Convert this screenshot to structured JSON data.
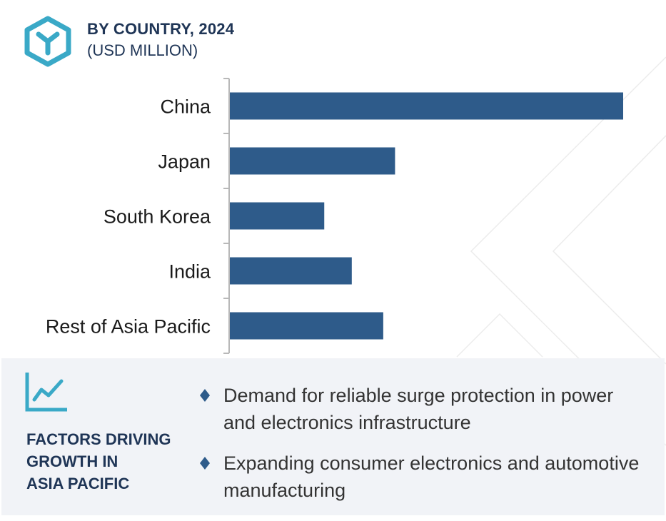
{
  "header": {
    "title": "BY COUNTRY, 2024",
    "subtitle": "(USD MILLION)",
    "logo_icon": "hexagon-y-logo-icon"
  },
  "colors": {
    "bar": "#2e5b8a",
    "accent": "#3aa9c7",
    "heading": "#1f3556",
    "panel": "#f1f3f7"
  },
  "chart_data": {
    "type": "bar",
    "orientation": "horizontal",
    "categories": [
      "China",
      "Japan",
      "South Korea",
      "India",
      "Rest of Asia Pacific"
    ],
    "values": [
      100,
      42,
      24,
      31,
      39
    ],
    "title": "BY COUNTRY, 2024",
    "subtitle": "(USD MILLION)",
    "xlim": [
      0,
      100
    ],
    "grid": false
  },
  "factors": {
    "icon": "trend-line-chart-icon",
    "title_lines": [
      "FACTORS DRIVING",
      "GROWTH IN",
      "ASIA PACIFIC"
    ],
    "items": [
      "Demand for reliable surge protection in power and electronics infrastructure",
      "Expanding consumer electronics and automotive manufacturing"
    ]
  }
}
